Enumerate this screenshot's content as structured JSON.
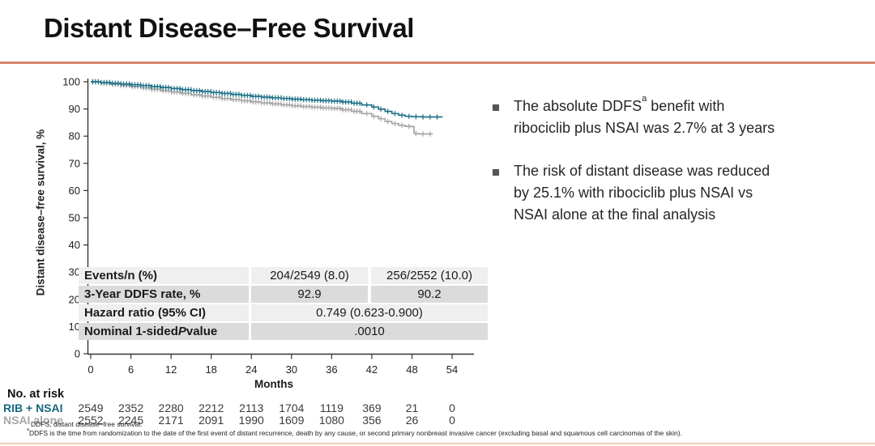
{
  "slide": {
    "title": "Distant Disease–Free Survival",
    "accent_color": "#D9836B"
  },
  "bullets": [
    {
      "pre": "The absolute DDFS",
      "sup": "a",
      "post": " benefit with\nribociclib plus NSAI was 2.7% at 3 years"
    },
    {
      "pre": "The risk of distant disease was reduced\nby 25.1% with ribociclib plus NSAI vs\nNSAI alone at the final analysis",
      "sup": "",
      "post": ""
    }
  ],
  "chart_data": {
    "type": "line",
    "subtype": "kaplan-meier-step",
    "title": "",
    "xlabel": "Months",
    "ylabel": "Distant disease–free survival, %",
    "xlim": [
      0,
      57
    ],
    "ylim": [
      0,
      100
    ],
    "x_ticks": [
      0,
      6,
      12,
      18,
      24,
      30,
      36,
      42,
      48,
      54
    ],
    "y_ticks": [
      0,
      10,
      20,
      30,
      40,
      50,
      60,
      70,
      80,
      90,
      100
    ],
    "grid": false,
    "legend_position": "none",
    "censor_marks": true,
    "series": [
      {
        "name": "NSAI alone",
        "color": "#A5A5A5",
        "points": [
          [
            0,
            100
          ],
          [
            1.5,
            99.55
          ],
          [
            3,
            99.1
          ],
          [
            4.5,
            98.65
          ],
          [
            6,
            98.2
          ],
          [
            7.5,
            97.7
          ],
          [
            9,
            97.2
          ],
          [
            10.5,
            96.7
          ],
          [
            12,
            96.2
          ],
          [
            13.5,
            95.7
          ],
          [
            15,
            95.2
          ],
          [
            16.5,
            94.75
          ],
          [
            18,
            94.3
          ],
          [
            19.5,
            93.85
          ],
          [
            21,
            93.4
          ],
          [
            22.5,
            93.0
          ],
          [
            24,
            92.6
          ],
          [
            25.5,
            92.2
          ],
          [
            27,
            91.85
          ],
          [
            28.5,
            91.5
          ],
          [
            30,
            91.2
          ],
          [
            31.5,
            90.9
          ],
          [
            33,
            90.65
          ],
          [
            34.5,
            90.4
          ],
          [
            36,
            90.2
          ],
          [
            37.5,
            89.7
          ],
          [
            39,
            89.1
          ],
          [
            40.5,
            88.3
          ],
          [
            42,
            87.3
          ],
          [
            43,
            86.4
          ],
          [
            44,
            85.4
          ],
          [
            45,
            84.6
          ],
          [
            46,
            84.0
          ],
          [
            47,
            83.6
          ],
          [
            47.8,
            83.5
          ],
          [
            48.3,
            81.0
          ],
          [
            49,
            80.8
          ],
          [
            51,
            80.6
          ]
        ]
      },
      {
        "name": "RIB + NSAI",
        "color": "#1F7288",
        "points": [
          [
            0,
            100
          ],
          [
            1.5,
            99.7
          ],
          [
            3,
            99.45
          ],
          [
            4.5,
            99.2
          ],
          [
            6,
            98.9
          ],
          [
            7.5,
            98.6
          ],
          [
            9,
            98.25
          ],
          [
            10.5,
            97.9
          ],
          [
            12,
            97.5
          ],
          [
            13.5,
            97.1
          ],
          [
            15,
            96.75
          ],
          [
            16.5,
            96.4
          ],
          [
            18,
            96.05
          ],
          [
            19.5,
            95.7
          ],
          [
            21,
            95.35
          ],
          [
            22.5,
            95.0
          ],
          [
            24,
            94.65
          ],
          [
            25.5,
            94.35
          ],
          [
            27,
            94.1
          ],
          [
            28.5,
            93.85
          ],
          [
            30,
            93.6
          ],
          [
            31.5,
            93.4
          ],
          [
            33,
            93.2
          ],
          [
            34.5,
            93.05
          ],
          [
            36,
            92.9
          ],
          [
            37.5,
            92.55
          ],
          [
            39,
            92.1
          ],
          [
            40.5,
            91.5
          ],
          [
            42,
            90.7
          ],
          [
            43,
            89.9
          ],
          [
            44,
            89.1
          ],
          [
            45,
            88.3
          ],
          [
            46,
            87.7
          ],
          [
            47,
            87.3
          ],
          [
            48,
            87.15
          ],
          [
            49.5,
            87.05
          ],
          [
            52.5,
            87.0
          ]
        ]
      }
    ]
  },
  "stats_table": {
    "columns": [
      "RIB + NSAI",
      "NSAI alone"
    ],
    "header_colors": [
      "#17697F",
      "#8E9090"
    ],
    "rows": [
      {
        "label": "Events/n (%)",
        "values": [
          "204/2549 (8.0)",
          "256/2552 (10.0)"
        ]
      },
      {
        "label": "3-Year DDFS rate, %",
        "values": [
          "92.9",
          "90.2"
        ]
      },
      {
        "label": "Hazard ratio (95% CI)",
        "values": [
          "0.749 (0.623-0.900)"
        ]
      },
      {
        "label_pre": "Nominal 1-sided ",
        "label_italic": "P",
        "label_post": " value",
        "values": [
          ".0010"
        ]
      }
    ]
  },
  "at_risk": {
    "heading": "No. at risk",
    "months": [
      0,
      6,
      12,
      18,
      24,
      30,
      36,
      42,
      48,
      54
    ],
    "rows": [
      {
        "label": "RIB + NSAI",
        "color": "#17697F",
        "values": [
          "2549",
          "2352",
          "2280",
          "2212",
          "2113",
          "1704",
          "1119",
          "369",
          "21",
          "0"
        ]
      },
      {
        "label": "NSAI alone",
        "color": "#A6A6A6",
        "values": [
          "2552",
          "2245",
          "2171",
          "2091",
          "1990",
          "1609",
          "1080",
          "356",
          "26",
          "0"
        ]
      }
    ]
  },
  "footnotes": {
    "line1": "DDFS, distant disease–free survival.",
    "line2_sup": "a",
    "line2": "DDFS is the time from randomization to the date of the first event of distant recurrence, death by any cause, or second primary nonbreast invasive cancer (excluding basal and squamous cell carcinomas of the skin)."
  }
}
